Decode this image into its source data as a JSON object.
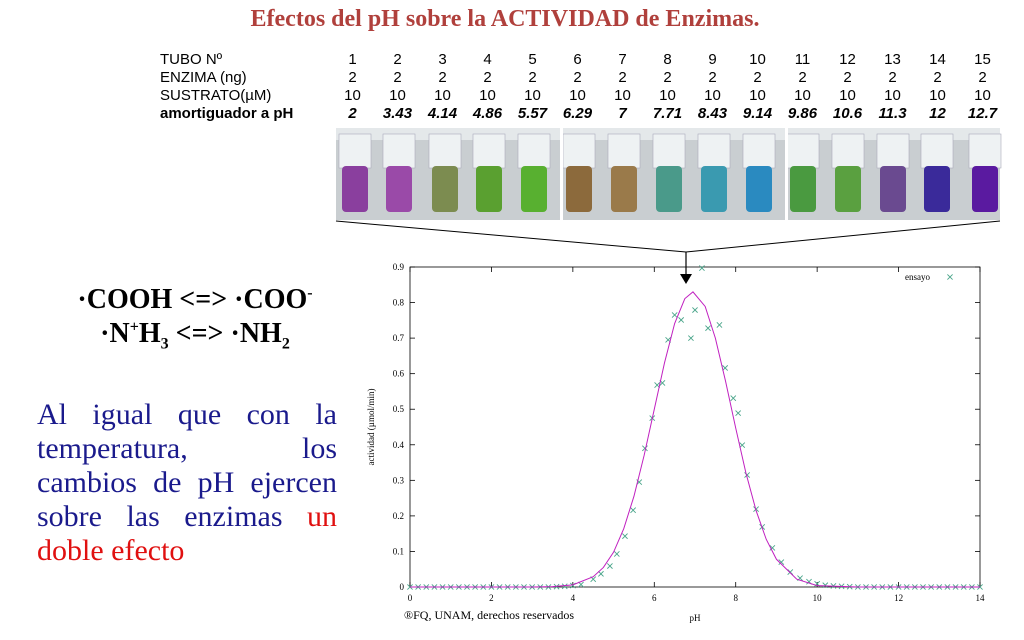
{
  "title": "Efectos del pH sobre la ACTIVIDAD de Enzimas.",
  "table": {
    "rows": [
      {
        "label": "TUBO Nº",
        "cells": [
          "1",
          "2",
          "3",
          "4",
          "5",
          "6",
          "7",
          "8",
          "9",
          "10",
          "11",
          "12",
          "13",
          "14",
          "15"
        ]
      },
      {
        "label": "ENZIMA (ng)",
        "cells": [
          "2",
          "2",
          "2",
          "2",
          "2",
          "2",
          "2",
          "2",
          "2",
          "2",
          "2",
          "2",
          "2",
          "2",
          "2"
        ]
      },
      {
        "label": "SUSTRATO(µM)",
        "cells": [
          "10",
          "10",
          "10",
          "10",
          "10",
          "10",
          "10",
          "10",
          "10",
          "10",
          "10",
          "10",
          "10",
          "10",
          "10"
        ]
      },
      {
        "label": "amortiguador a pH",
        "cells": [
          "2",
          "3.43",
          "4.14",
          "4.86",
          "5.57",
          "6.29",
          "7",
          "7.71",
          "8.43",
          "9.14",
          "9.86",
          "10.6",
          "11.3",
          "12",
          "12.7"
        ]
      }
    ]
  },
  "equations": [
    [
      "·COOH <=> ·COO",
      "-"
    ],
    [
      "·N",
      "+",
      "H",
      "3",
      " <=> ·NH",
      "2"
    ]
  ],
  "paragraph": {
    "text": "Al igual que con la temperatura, los cambios de pH ejercen sobre las enzimas ",
    "highlight": "un doble efecto"
  },
  "copyright": "®FQ, UNAM, derechos reservados",
  "chart_data": {
    "type": "scatter",
    "x_label": "pH",
    "y_label": "actividad (µmol/min)",
    "xlim": [
      0,
      14
    ],
    "ylim": [
      0,
      0.9
    ],
    "xticks": [
      0,
      2,
      4,
      6,
      8,
      10,
      12,
      14
    ],
    "yticks": [
      0,
      0.1,
      0.2,
      0.3,
      0.4,
      0.5,
      0.6,
      0.7,
      0.8,
      0.9
    ],
    "legend": "top-right",
    "series": [
      {
        "name": "ensayo",
        "color": "#4aa58a",
        "x": [
          0,
          0.2,
          0.4,
          0.6,
          0.8,
          1,
          1.2,
          1.4,
          1.6,
          1.8,
          2,
          2.2,
          2.4,
          2.6,
          2.8,
          3,
          3.2,
          3.4,
          3.6,
          3.8,
          4,
          4.2,
          4.5,
          4.69,
          4.91,
          5.08,
          5.28,
          5.48,
          5.63,
          5.77,
          5.95,
          6.07,
          6.2,
          6.34,
          6.5,
          6.66,
          6.9,
          7,
          7.17,
          7.32,
          7.6,
          7.74,
          7.94,
          8.06,
          8.16,
          8.28,
          8.5,
          8.65,
          8.9,
          9.12,
          9.34,
          9.58,
          9.8,
          10,
          10.2,
          10.4,
          10.6,
          10.8,
          11,
          11.2,
          11.4,
          11.6,
          11.8,
          12,
          12.2,
          12.4,
          12.6,
          12.8,
          13,
          13.2,
          13.4,
          13.6,
          13.8,
          14
        ],
        "values": [
          0,
          0,
          0,
          0,
          0,
          0,
          0,
          0,
          0,
          0,
          0,
          0,
          0,
          0,
          0,
          0,
          0,
          0,
          0.001,
          0.002,
          0.004,
          0.007,
          0.022,
          0.037,
          0.059,
          0.093,
          0.143,
          0.216,
          0.295,
          0.39,
          0.475,
          0.568,
          0.574,
          0.695,
          0.765,
          0.751,
          0.7,
          0.779,
          0.897,
          0.728,
          0.737,
          0.616,
          0.531,
          0.489,
          0.399,
          0.315,
          0.219,
          0.169,
          0.11,
          0.07,
          0.042,
          0.025,
          0.015,
          0.009,
          0.005,
          0.003,
          0.002,
          0.001,
          0,
          0,
          0,
          0,
          0,
          0,
          0,
          0,
          0,
          0,
          0,
          0,
          0,
          0,
          0,
          0
        ]
      },
      {
        "type": "line",
        "color": "#c020c0",
        "x": [
          0,
          3,
          3.5,
          4,
          4.5,
          4.75,
          5,
          5.25,
          5.5,
          5.75,
          6,
          6.25,
          6.5,
          6.75,
          6.95,
          7.25,
          7.5,
          7.75,
          8,
          8.25,
          8.5,
          8.75,
          9,
          9.5,
          10,
          11,
          14
        ],
        "values": [
          0,
          0,
          0.001,
          0.006,
          0.029,
          0.055,
          0.098,
          0.164,
          0.255,
          0.37,
          0.5,
          0.63,
          0.741,
          0.811,
          0.83,
          0.789,
          0.7,
          0.579,
          0.447,
          0.321,
          0.215,
          0.134,
          0.078,
          0.022,
          0.004,
          0,
          0
        ]
      }
    ]
  }
}
